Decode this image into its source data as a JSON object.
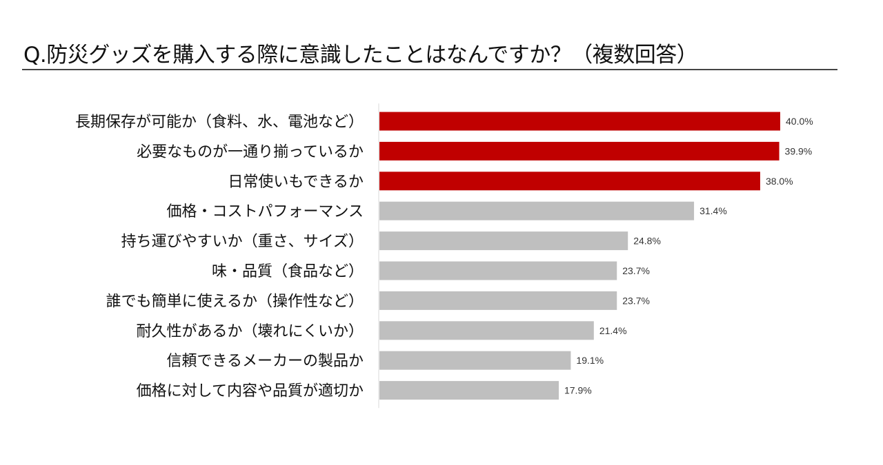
{
  "chart_data": {
    "type": "bar",
    "orientation": "horizontal",
    "title": "Q.防災グッズを購入する際に意識したことはなんですか？（複数回答）",
    "xlabel": "",
    "ylabel": "",
    "xlim": [
      0,
      40
    ],
    "grid": false,
    "categories": [
      "長期保存が可能か（食料、水、電池など）",
      "必要なものが一通り揃っているか",
      "日常使いもできるか",
      "価格・コストパフォーマンス",
      "持ち運びやすいか（重さ、サイズ）",
      "味・品質（食品など）",
      "誰でも簡単に使えるか（操作性など）",
      "耐久性があるか（壊れにくいか）",
      "信頼できるメーカーの製品か",
      "価格に対して内容や品質が適切か"
    ],
    "values": [
      40.0,
      39.9,
      38.0,
      31.4,
      24.8,
      23.7,
      23.7,
      21.4,
      19.1,
      17.9
    ],
    "data_labels": [
      "40.0%",
      "39.9%",
      "38.0%",
      "31.4%",
      "24.8%",
      "23.7%",
      "23.7%",
      "21.4%",
      "19.1%",
      "17.9%"
    ],
    "highlight_top_n": 3,
    "colors": {
      "highlight": "#C00000",
      "default": "#BFBFBF",
      "axis": "#D9D9D9"
    }
  }
}
